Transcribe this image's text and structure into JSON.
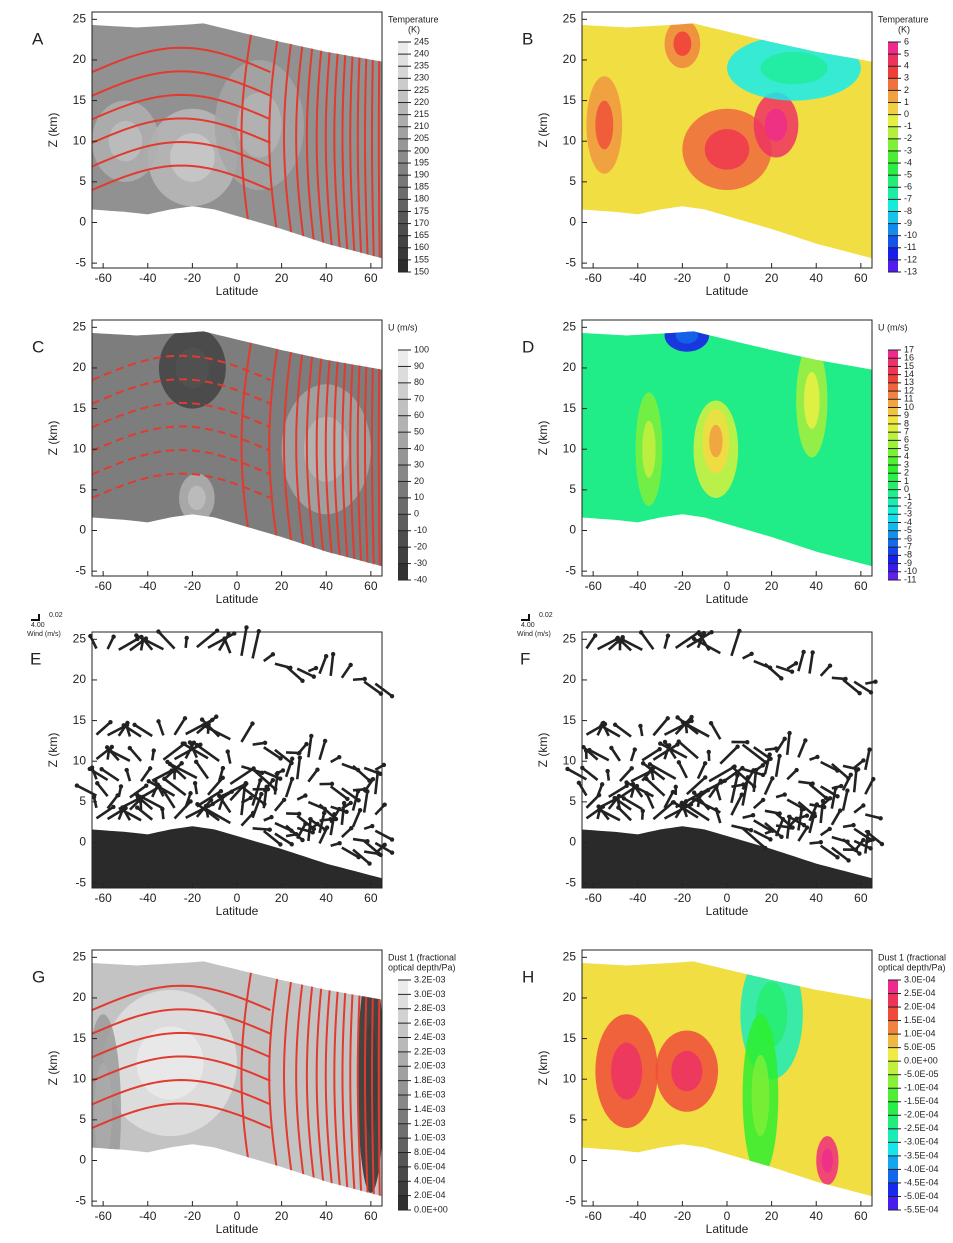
{
  "chart_data": [
    {
      "type": "contour",
      "panel": "A",
      "xlabel": "Latitude",
      "ylabel": "Z (km)",
      "xlim": [
        -65,
        65
      ],
      "ylim": [
        -5.6,
        25.9
      ],
      "xticks": [
        -60,
        -40,
        -20,
        0,
        20,
        40,
        60
      ],
      "yticks": [
        -5,
        0,
        5,
        10,
        15,
        20,
        25
      ],
      "colormap": "gray",
      "contour_color": "#e23a2e",
      "colorbar": {
        "title": [
          "Temperature",
          "(K)"
        ],
        "ticks": [
          245,
          240,
          235,
          230,
          225,
          220,
          215,
          210,
          205,
          200,
          195,
          190,
          185,
          180,
          175,
          170,
          165,
          160,
          155,
          150
        ]
      }
    },
    {
      "type": "contour",
      "panel": "B",
      "xlabel": "Latitude",
      "ylabel": "Z (km)",
      "xlim": [
        -65,
        65
      ],
      "ylim": [
        -5.6,
        25.9
      ],
      "xticks": [
        -60,
        -40,
        -20,
        0,
        20,
        40,
        60
      ],
      "yticks": [
        -5,
        0,
        5,
        10,
        15,
        20,
        25
      ],
      "colormap": "rainbow",
      "colorbar": {
        "title": [
          "Temperature",
          "(K)"
        ],
        "ticks": [
          6,
          5,
          4,
          3,
          2,
          1,
          0,
          -1,
          -2,
          -3,
          -4,
          -5,
          -6,
          -7,
          -8,
          -9,
          -10,
          -11,
          -12,
          -13
        ]
      }
    },
    {
      "type": "contour",
      "panel": "C",
      "xlabel": "Latitude",
      "ylabel": "Z (km)",
      "xlim": [
        -65,
        65
      ],
      "ylim": [
        -5.6,
        25.9
      ],
      "xticks": [
        -60,
        -40,
        -20,
        0,
        20,
        40,
        60
      ],
      "yticks": [
        -5,
        0,
        5,
        10,
        15,
        20,
        25
      ],
      "colormap": "gray",
      "contour_color": "#e23a2e",
      "colorbar": {
        "title": [
          "U (m/s)"
        ],
        "ticks": [
          100,
          90,
          80,
          70,
          60,
          50,
          40,
          30,
          20,
          10,
          0,
          -10,
          -20,
          -30,
          -40
        ]
      }
    },
    {
      "type": "contour",
      "panel": "D",
      "xlabel": "Latitude",
      "ylabel": "Z (km)",
      "xlim": [
        -65,
        65
      ],
      "ylim": [
        -5.6,
        25.9
      ],
      "xticks": [
        -60,
        -40,
        -20,
        0,
        20,
        40,
        60
      ],
      "yticks": [
        -5,
        0,
        5,
        10,
        15,
        20,
        25
      ],
      "colormap": "rainbow",
      "colorbar": {
        "title": [
          "U (m/s)"
        ],
        "ticks": [
          17,
          16,
          15,
          14,
          13,
          12,
          11,
          10,
          9,
          8,
          7,
          6,
          5,
          4,
          3,
          2,
          1,
          0,
          -1,
          -2,
          -3,
          -4,
          -5,
          -6,
          -7,
          -8,
          -9,
          -10,
          -11
        ]
      }
    },
    {
      "type": "vector",
      "panel": "E",
      "xlabel": "Latitude",
      "ylabel": "Z (km)",
      "xlim": [
        -65,
        65
      ],
      "ylim": [
        -5.6,
        25.9
      ],
      "xticks": [
        -60,
        -40,
        -20,
        0,
        20,
        40,
        60
      ],
      "yticks": [
        -5,
        0,
        5,
        10,
        15,
        20,
        25
      ],
      "legend_labels": [
        "4.00",
        "0.02",
        "Wind (m/s)"
      ]
    },
    {
      "type": "vector",
      "panel": "F",
      "xlabel": "Latitude",
      "ylabel": "Z (km)",
      "xlim": [
        -65,
        65
      ],
      "ylim": [
        -5.6,
        25.9
      ],
      "xticks": [
        -60,
        -40,
        -20,
        0,
        20,
        40,
        60
      ],
      "yticks": [
        -5,
        0,
        5,
        10,
        15,
        20,
        25
      ],
      "legend_labels": [
        "4.00",
        "0.02",
        "Wind (m/s)"
      ]
    },
    {
      "type": "contour",
      "panel": "G",
      "xlabel": "Latitude",
      "ylabel": "Z (km)",
      "xlim": [
        -65,
        65
      ],
      "ylim": [
        -5.6,
        25.9
      ],
      "xticks": [
        -60,
        -40,
        -20,
        0,
        20,
        40,
        60
      ],
      "yticks": [
        -5,
        0,
        5,
        10,
        15,
        20,
        25
      ],
      "colormap": "gray",
      "contour_color": "#e23a2e",
      "colorbar": {
        "title": [
          "Dust 1 (fractional",
          "optical depth/Pa)"
        ],
        "ticks": [
          {
            "value": 0.0032,
            "label": "3.2E-03"
          },
          {
            "value": 0.003,
            "label": "3.0E-03"
          },
          {
            "value": 0.0028,
            "label": "2.8E-03"
          },
          {
            "value": 0.0026,
            "label": "2.6E-03"
          },
          {
            "value": 0.0024,
            "label": "2.4E-03"
          },
          {
            "value": 0.0022,
            "label": "2.2E-03"
          },
          {
            "value": 0.002,
            "label": "2.0E-03"
          },
          {
            "value": 0.0018,
            "label": "1.8E-03"
          },
          {
            "value": 0.0016,
            "label": "1.6E-03"
          },
          {
            "value": 0.0014,
            "label": "1.4E-03"
          },
          {
            "value": 0.0012,
            "label": "1.2E-03"
          },
          {
            "value": 0.001,
            "label": "1.0E-03"
          },
          {
            "value": 0.0008,
            "label": "8.0E-04"
          },
          {
            "value": 0.0006,
            "label": "6.0E-04"
          },
          {
            "value": 0.0004,
            "label": "4.0E-04"
          },
          {
            "value": 0.0002,
            "label": "2.0E-04"
          },
          {
            "value": 0,
            "label": "0.0E+00"
          }
        ]
      }
    },
    {
      "type": "contour",
      "panel": "H",
      "xlabel": "Latitude",
      "ylabel": "Z (km)",
      "xlim": [
        -65,
        65
      ],
      "ylim": [
        -5.6,
        25.9
      ],
      "xticks": [
        -60,
        -40,
        -20,
        0,
        20,
        40,
        60
      ],
      "yticks": [
        -5,
        0,
        5,
        10,
        15,
        20,
        25
      ],
      "colormap": "rainbow",
      "colorbar": {
        "title": [
          "Dust 1 (fractional",
          "optical depth/Pa)"
        ],
        "ticks": [
          {
            "value": 0.0003,
            "label": "3.0E-04"
          },
          {
            "value": 0.00025,
            "label": "2.5E-04"
          },
          {
            "value": 0.0002,
            "label": "2.0E-04"
          },
          {
            "value": 0.00015,
            "label": "1.5E-04"
          },
          {
            "value": 0.0001,
            "label": "1.0E-04"
          },
          {
            "value": 5e-05,
            "label": "5.0E-05"
          },
          {
            "value": 0,
            "label": "0.0E+00"
          },
          {
            "value": -5e-05,
            "label": "-5.0E-05"
          },
          {
            "value": -0.0001,
            "label": "-1.0E-04"
          },
          {
            "value": -0.00015,
            "label": "-1.5E-04"
          },
          {
            "value": -0.0002,
            "label": "-2.0E-04"
          },
          {
            "value": -0.00025,
            "label": "-2.5E-04"
          },
          {
            "value": -0.0003,
            "label": "-3.0E-04"
          },
          {
            "value": -0.00035,
            "label": "-3.5E-04"
          },
          {
            "value": -0.0004,
            "label": "-4.0E-04"
          },
          {
            "value": -0.00045,
            "label": "-4.5E-04"
          },
          {
            "value": -0.0005,
            "label": "-5.0E-04"
          },
          {
            "value": -0.00055,
            "label": "-5.5E-04"
          }
        ]
      }
    }
  ]
}
